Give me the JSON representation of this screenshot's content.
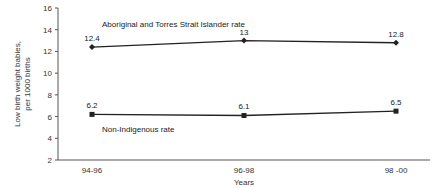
{
  "chart_data": {
    "type": "line",
    "x_label": "Years",
    "y_label": "Low birth weight babies, per 1000 births",
    "categories": [
      "94-96",
      "96-98",
      "98 -00"
    ],
    "series": [
      {
        "name": "Aboriginal and Torres Strait Islander rate",
        "color": "#222222",
        "marker": "diamond",
        "values": [
          12.4,
          13,
          12.8
        ]
      },
      {
        "name": "Non-Indigenous rate",
        "color": "#222222",
        "marker": "square",
        "values": [
          6.2,
          6.1,
          6.5
        ]
      }
    ],
    "ylim": [
      2,
      16
    ],
    "yticks": [
      2,
      4,
      6,
      8,
      10,
      12,
      14,
      16
    ],
    "grid": false,
    "data_labels": true
  }
}
